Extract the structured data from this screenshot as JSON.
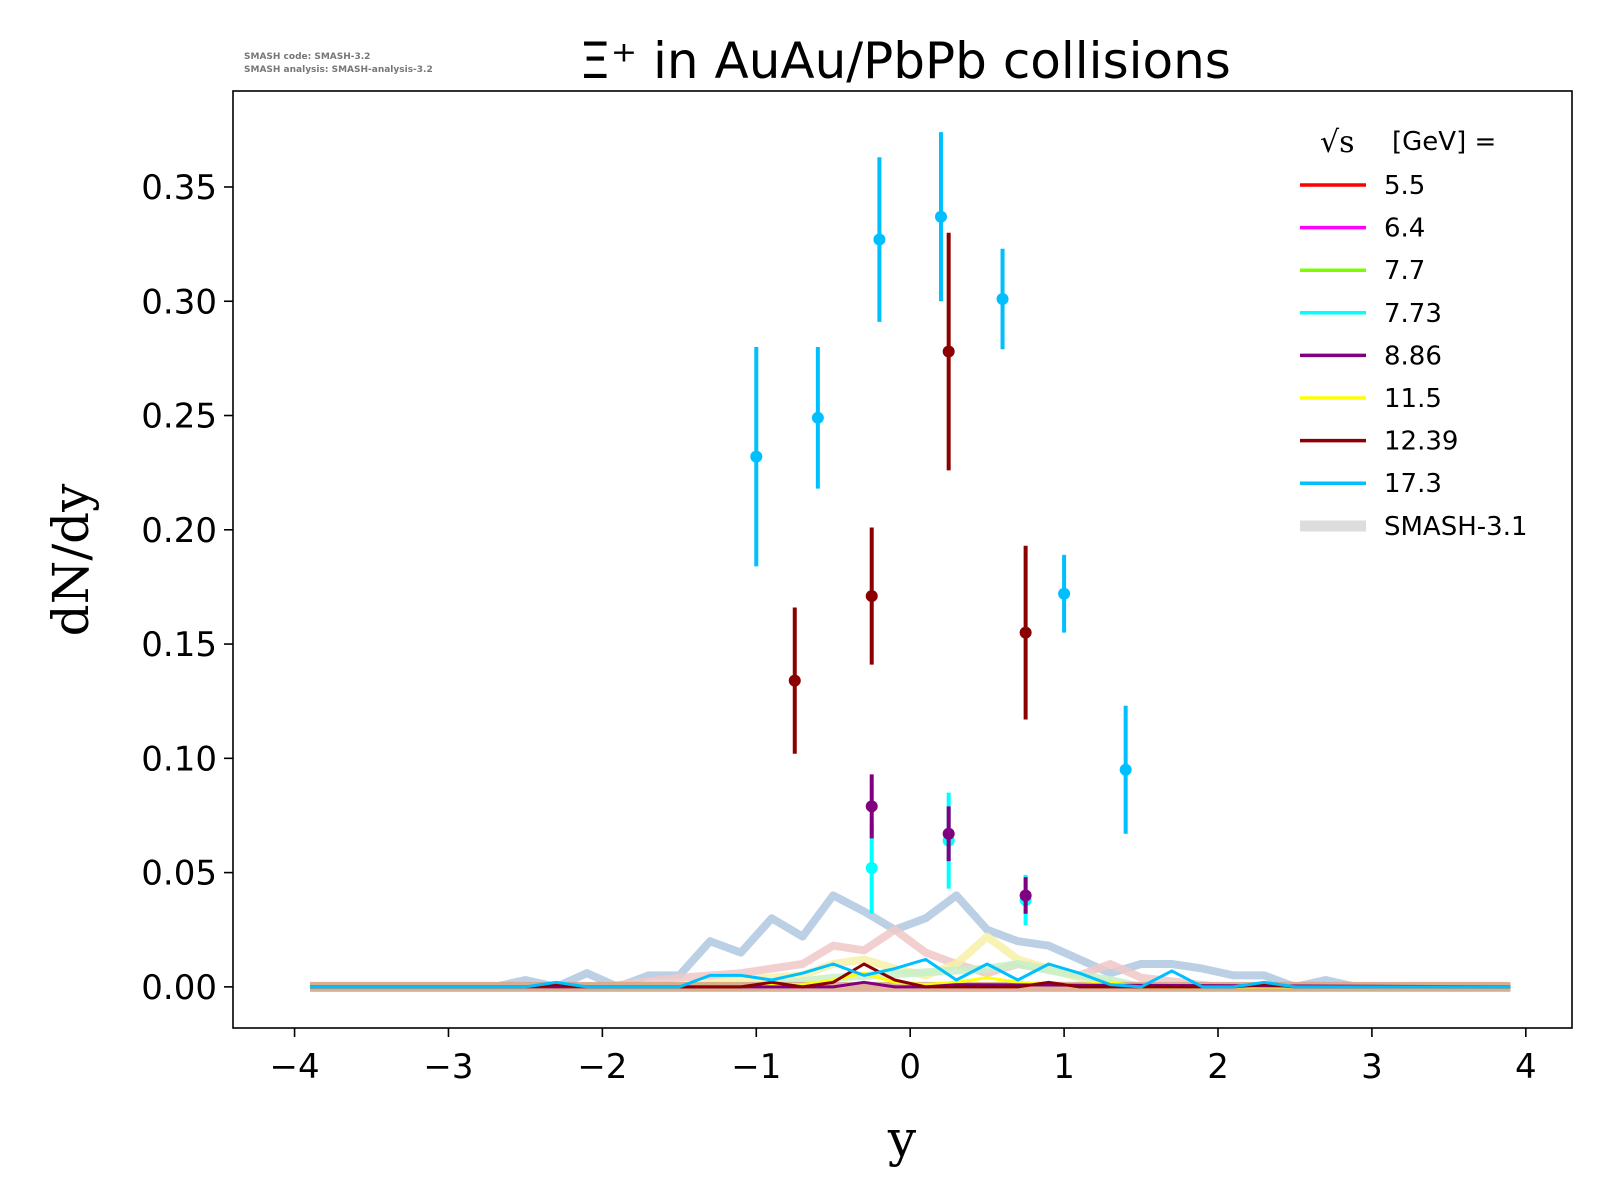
{
  "notes": [
    "SMASH code:      SMASH-3.2",
    "SMASH analysis: SMASH-analysis-3.2"
  ],
  "chart_data": {
    "type": "line",
    "title": "Ξ⁺ in AuAu/PbPb collisions",
    "xlabel": "y",
    "ylabel": "dN/dy",
    "xlim": [
      -4.4,
      4.3
    ],
    "ylim": [
      -0.018,
      0.392
    ],
    "xticks": [
      "−4",
      "−3",
      "−2",
      "−1",
      "0",
      "1",
      "2",
      "3",
      "4"
    ],
    "xtick_values": [
      -4,
      -3,
      -2,
      -1,
      0,
      1,
      2,
      3,
      4
    ],
    "yticks": [
      "0.00",
      "0.05",
      "0.10",
      "0.15",
      "0.20",
      "0.25",
      "0.30",
      "0.35"
    ],
    "ytick_values": [
      0,
      0.05,
      0.1,
      0.15,
      0.2,
      0.25,
      0.3,
      0.35
    ],
    "grid": false,
    "legend": {
      "title_sym": "√s",
      "title_text": "[GeV] =",
      "position": "top-right"
    },
    "series": [
      {
        "name": "5.5",
        "color": "#ff0000"
      },
      {
        "name": "6.4",
        "color": "#ff00ff"
      },
      {
        "name": "7.7",
        "color": "#7cfc00"
      },
      {
        "name": "7.73",
        "color": "#00ffff"
      },
      {
        "name": "8.86",
        "color": "#800080"
      },
      {
        "name": "11.5",
        "color": "#ffff00"
      },
      {
        "name": "12.39",
        "color": "#8b0000"
      },
      {
        "name": "17.3",
        "color": "#00bfff"
      }
    ],
    "smash_label": "SMASH-3.1",
    "smash_color": "#dddddd",
    "smash_curves": [
      {
        "color": "#b0c8e0",
        "x": [
          -3.9,
          -2.7,
          -2.5,
          -2.3,
          -2.1,
          -1.9,
          -1.7,
          -1.5,
          -1.3,
          -1.1,
          -0.9,
          -0.7,
          -0.5,
          -0.3,
          -0.1,
          0.1,
          0.3,
          0.5,
          0.7,
          0.9,
          1.1,
          1.3,
          1.5,
          1.7,
          1.9,
          2.1,
          2.3,
          2.5,
          2.7,
          2.9,
          3.9
        ],
        "y": [
          0,
          0,
          0.003,
          0,
          0.006,
          0,
          0.005,
          0.005,
          0.02,
          0.015,
          0.03,
          0.022,
          0.04,
          0.033,
          0.025,
          0.03,
          0.04,
          0.025,
          0.02,
          0.018,
          0.012,
          0.006,
          0.01,
          0.01,
          0.008,
          0.005,
          0.005,
          0,
          0.003,
          0,
          0
        ]
      },
      {
        "color": "#f0c8c8",
        "x": [
          -3.9,
          -2.0,
          -1.5,
          -1.1,
          -0.9,
          -0.7,
          -0.5,
          -0.3,
          -0.1,
          0.1,
          0.3,
          0.5,
          0.7,
          0.9,
          1.1,
          1.3,
          1.5,
          2.0,
          3.9
        ],
        "y": [
          0,
          0,
          0.004,
          0.006,
          0.008,
          0.01,
          0.018,
          0.016,
          0.025,
          0.015,
          0.01,
          0.006,
          0.01,
          0.008,
          0.005,
          0.01,
          0.004,
          0,
          0
        ]
      },
      {
        "color": "#f8f0a8",
        "x": [
          -3.9,
          -1.5,
          -1.1,
          -0.7,
          -0.5,
          -0.3,
          -0.1,
          0.1,
          0.3,
          0.5,
          0.7,
          0.9,
          1.1,
          1.5,
          3.9
        ],
        "y": [
          0,
          0,
          0.003,
          0.005,
          0.01,
          0.012,
          0.008,
          0.005,
          0.01,
          0.022,
          0.012,
          0.008,
          0.004,
          0,
          0
        ]
      },
      {
        "color": "#c8f0c8",
        "x": [
          -3.9,
          -1.0,
          -0.5,
          0,
          0.5,
          0.7,
          1.0,
          1.3,
          1.5,
          3.9
        ],
        "y": [
          0,
          0,
          0.004,
          0.006,
          0.008,
          0.01,
          0.006,
          0.003,
          0,
          0
        ]
      }
    ],
    "model_lines": [
      {
        "color": "#ffff00",
        "x": [
          -3.9,
          -1.5,
          -1.1,
          -0.9,
          -0.7,
          -0.5,
          -0.3,
          -0.1,
          0.1,
          0.3,
          0.5,
          0.7,
          0.9,
          1.1,
          1.3,
          1.5,
          3.9
        ],
        "y": [
          0,
          0,
          0,
          0.001,
          0.001,
          0.003,
          0.006,
          0.002,
          0.001,
          0.002,
          0.004,
          0.002,
          0.001,
          0.001,
          0.002,
          0,
          0
        ]
      },
      {
        "color": "#800080",
        "x": [
          -3.9,
          -0.5,
          -0.3,
          -0.1,
          0.1,
          0.3,
          3.9
        ],
        "y": [
          0,
          0,
          0.002,
          0,
          0,
          0.001,
          0
        ]
      },
      {
        "color": "#8b0000",
        "x": [
          -3.9,
          -2.5,
          -2.3,
          -2.1,
          -1.1,
          -0.9,
          -0.7,
          -0.5,
          -0.3,
          -0.1,
          0.1,
          0.3,
          0.5,
          0.7,
          0.9,
          1.1,
          1.3,
          1.5,
          2.1,
          2.3,
          2.5,
          3.9
        ],
        "y": [
          0,
          0,
          0.001,
          0,
          0,
          0.002,
          0,
          0.002,
          0.01,
          0.003,
          0,
          0,
          0,
          0,
          0.002,
          0,
          0,
          0,
          0,
          0.001,
          0,
          0
        ]
      },
      {
        "color": "#00bfff",
        "x": [
          -3.9,
          -2.5,
          -2.3,
          -2.1,
          -1.5,
          -1.3,
          -1.1,
          -0.9,
          -0.7,
          -0.5,
          -0.3,
          -0.1,
          0.1,
          0.3,
          0.5,
          0.7,
          0.9,
          1.1,
          1.3,
          1.5,
          1.7,
          1.9,
          2.1,
          2.3,
          2.5,
          3.9
        ],
        "y": [
          0,
          0,
          0.002,
          0,
          0,
          0.005,
          0.005,
          0.003,
          0.006,
          0.01,
          0.005,
          0.008,
          0.012,
          0.003,
          0.01,
          0.003,
          0.01,
          0.006,
          0.001,
          0,
          0.007,
          0,
          0,
          0.002,
          0,
          0
        ]
      }
    ],
    "points": [
      {
        "color": "#00bfff",
        "x": -1.0,
        "y": 0.232,
        "err": 0.048
      },
      {
        "color": "#00bfff",
        "x": -0.6,
        "y": 0.249,
        "err": 0.031
      },
      {
        "color": "#00bfff",
        "x": -0.2,
        "y": 0.327,
        "err": 0.036
      },
      {
        "color": "#00bfff",
        "x": 0.2,
        "y": 0.337,
        "err": 0.037
      },
      {
        "color": "#00bfff",
        "x": 0.6,
        "y": 0.301,
        "err": 0.022
      },
      {
        "color": "#00bfff",
        "x": 1.0,
        "y": 0.172,
        "err": 0.017
      },
      {
        "color": "#00bfff",
        "x": 1.4,
        "y": 0.095,
        "err": 0.028
      },
      {
        "color": "#8b0000",
        "x": -0.75,
        "y": 0.134,
        "err": 0.032
      },
      {
        "color": "#8b0000",
        "x": -0.25,
        "y": 0.171,
        "err": 0.03
      },
      {
        "color": "#8b0000",
        "x": 0.25,
        "y": 0.278,
        "err": 0.052
      },
      {
        "color": "#8b0000",
        "x": 0.75,
        "y": 0.155,
        "err": 0.038
      },
      {
        "color": "#00ffff",
        "x": -0.25,
        "y": 0.052,
        "err": 0.02
      },
      {
        "color": "#00ffff",
        "x": 0.25,
        "y": 0.064,
        "err": 0.021
      },
      {
        "color": "#00ffff",
        "x": 0.75,
        "y": 0.038,
        "err": 0.011
      },
      {
        "color": "#800080",
        "x": -0.25,
        "y": 0.079,
        "err": 0.014
      },
      {
        "color": "#800080",
        "x": 0.25,
        "y": 0.067,
        "err": 0.012
      },
      {
        "color": "#800080",
        "x": 0.75,
        "y": 0.04,
        "err": 0.008
      }
    ]
  }
}
